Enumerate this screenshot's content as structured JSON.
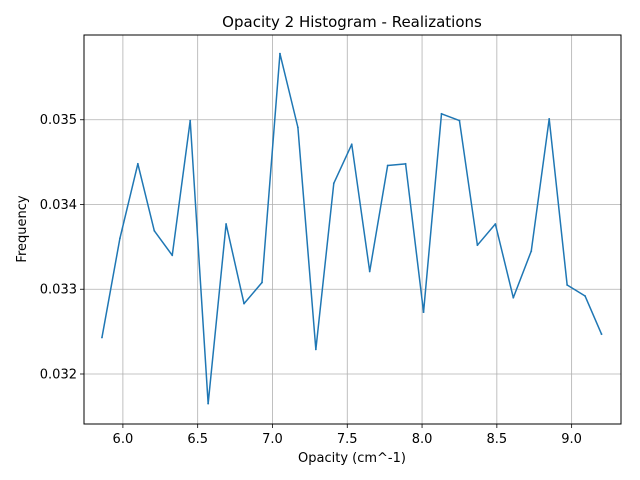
{
  "chart_data": {
    "type": "line",
    "title": "Opacity 2 Histogram - Realizations",
    "xlabel": "Opacity (cm^-1)",
    "ylabel": "Frequency",
    "xlim": [
      5.74,
      9.33
    ],
    "ylim": [
      0.03141,
      0.036
    ],
    "xticks": [
      6.0,
      6.5,
      7.0,
      7.5,
      8.0,
      8.5,
      9.0
    ],
    "xtick_labels": [
      "6.0",
      "6.5",
      "7.0",
      "7.5",
      "8.0",
      "8.5",
      "9.0"
    ],
    "yticks": [
      0.032,
      0.033,
      0.034,
      0.035
    ],
    "ytick_labels": [
      "0.032",
      "0.033",
      "0.034",
      "0.035"
    ],
    "grid": true,
    "series": [
      {
        "color": "#1f77b4",
        "x": [
          5.86,
          5.98,
          6.1,
          6.21,
          6.33,
          6.45,
          6.57,
          6.69,
          6.81,
          6.93,
          7.05,
          7.17,
          7.29,
          7.41,
          7.53,
          7.65,
          7.77,
          7.89,
          8.01,
          8.13,
          8.25,
          8.37,
          8.49,
          8.61,
          8.73,
          8.85,
          8.97,
          9.09,
          9.2
        ],
        "y": [
          0.03243,
          0.0336,
          0.03448,
          0.03369,
          0.0334,
          0.03499,
          0.03165,
          0.03377,
          0.03283,
          0.03308,
          0.03578,
          0.03491,
          0.03229,
          0.03425,
          0.03471,
          0.03321,
          0.03446,
          0.03448,
          0.03273,
          0.03507,
          0.03499,
          0.03352,
          0.03377,
          0.0329,
          0.03345,
          0.03501,
          0.03305,
          0.03292,
          0.03247
        ]
      }
    ]
  }
}
